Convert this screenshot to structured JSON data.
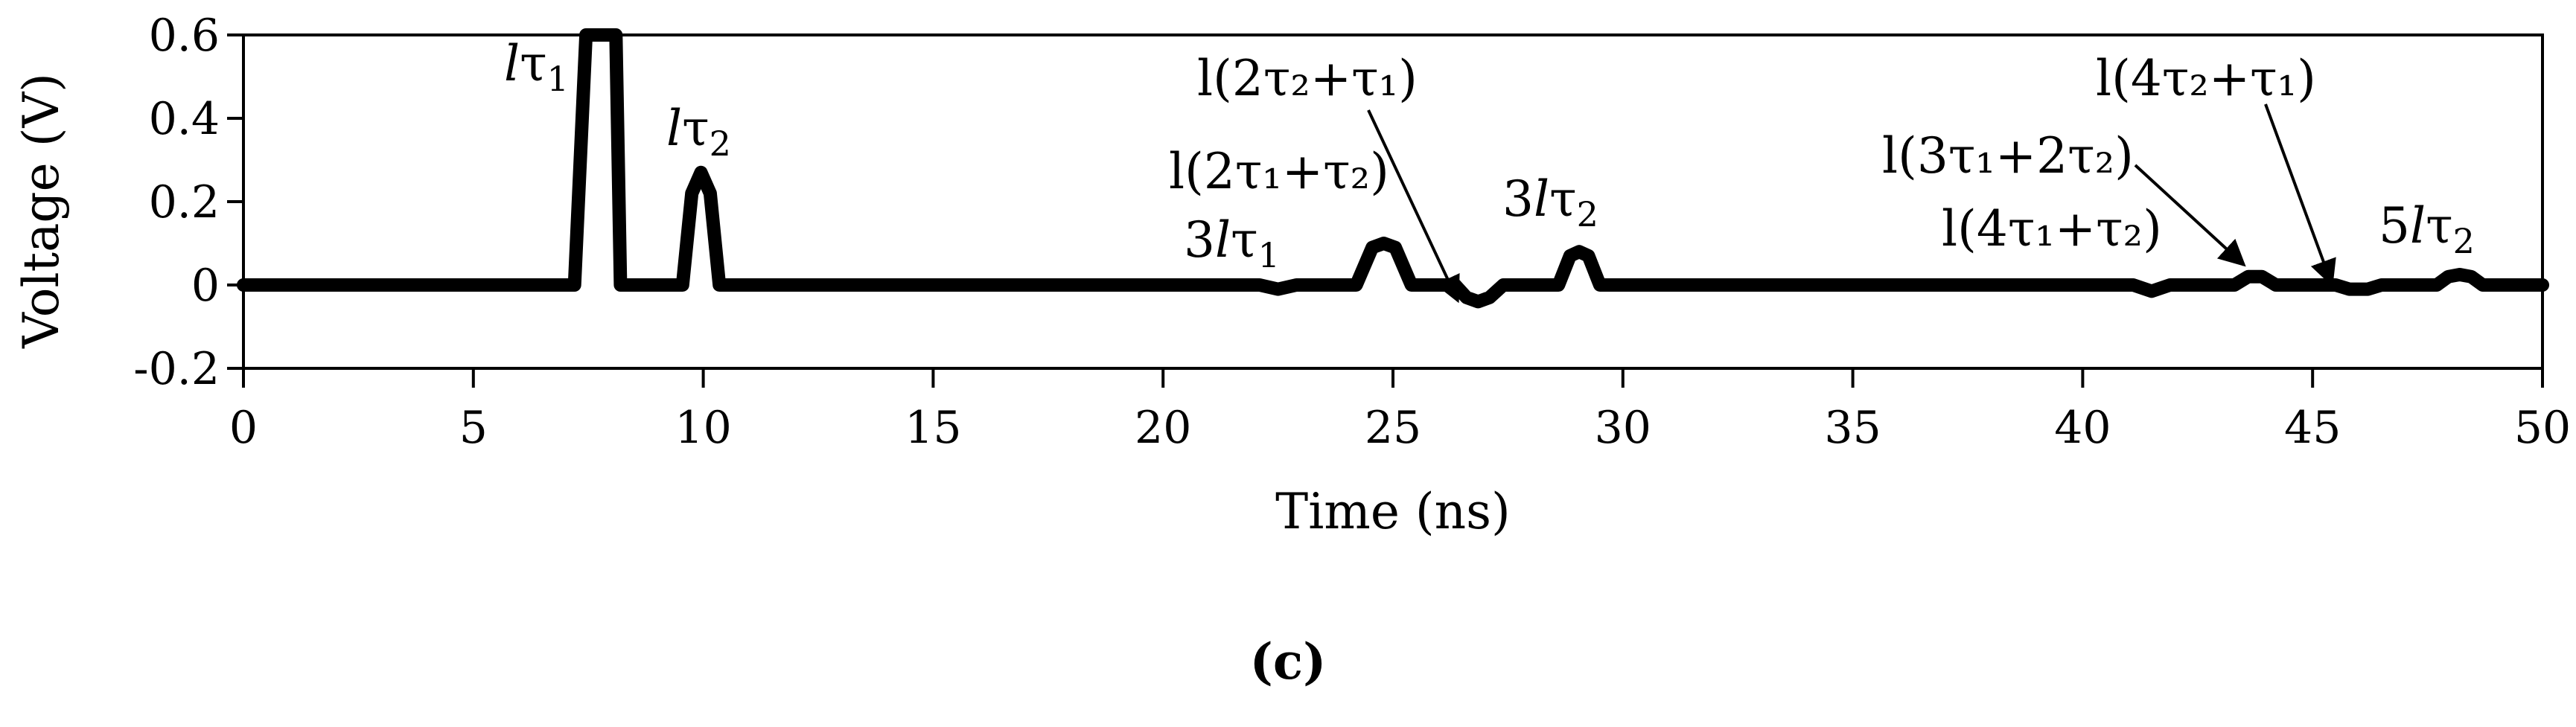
{
  "chart_data": {
    "type": "line",
    "title": "",
    "xlabel": "Time (ns)",
    "ylabel": "Voltage (V)",
    "xlim": [
      0,
      50
    ],
    "ylim": [
      -0.2,
      0.6
    ],
    "x_ticks": [
      0,
      5,
      10,
      15,
      20,
      25,
      30,
      35,
      40,
      45,
      50
    ],
    "y_ticks": [
      -0.2,
      0,
      0.2,
      0.4,
      0.6
    ],
    "x_tick_labels": [
      "0",
      "5",
      "10",
      "15",
      "20",
      "25",
      "30",
      "35",
      "40",
      "45",
      "50"
    ],
    "y_tick_labels": [
      "-0.2",
      "0",
      "0.2",
      "0.4",
      "0.6"
    ],
    "grid": false,
    "legend": "none",
    "series": [
      {
        "points": [
          [
            0,
            0
          ],
          [
            7.2,
            0
          ],
          [
            7.45,
            0.6
          ],
          [
            7.65,
            0.6
          ],
          [
            7.9,
            0.6
          ],
          [
            8.1,
            0.6
          ],
          [
            8.2,
            0
          ],
          [
            9.55,
            0
          ],
          [
            9.75,
            0.22
          ],
          [
            9.95,
            0.27
          ],
          [
            10.15,
            0.22
          ],
          [
            10.35,
            0
          ],
          [
            22.1,
            0
          ],
          [
            22.5,
            -0.01
          ],
          [
            22.9,
            0
          ],
          [
            24.2,
            0
          ],
          [
            24.55,
            0.09
          ],
          [
            24.8,
            0.1
          ],
          [
            25.05,
            0.09
          ],
          [
            25.4,
            0
          ],
          [
            26.35,
            0
          ],
          [
            26.6,
            -0.03
          ],
          [
            26.85,
            -0.04
          ],
          [
            27.1,
            -0.03
          ],
          [
            27.4,
            0
          ],
          [
            28.6,
            0
          ],
          [
            28.85,
            0.07
          ],
          [
            29.05,
            0.08
          ],
          [
            29.25,
            0.07
          ],
          [
            29.5,
            0
          ],
          [
            41.1,
            0
          ],
          [
            41.5,
            -0.015
          ],
          [
            41.9,
            0
          ],
          [
            43.3,
            0
          ],
          [
            43.6,
            0.02
          ],
          [
            43.9,
            0.02
          ],
          [
            44.2,
            0
          ],
          [
            45.5,
            0
          ],
          [
            45.8,
            -0.01
          ],
          [
            46.2,
            -0.01
          ],
          [
            46.5,
            0
          ],
          [
            47.7,
            0
          ],
          [
            47.95,
            0.02
          ],
          [
            48.2,
            0.025
          ],
          [
            48.45,
            0.02
          ],
          [
            48.7,
            0
          ],
          [
            50,
            0
          ]
        ]
      }
    ],
    "annotations": {
      "a1": {
        "pre": "",
        "ital": "l",
        "post": "τ",
        "sub": "1"
      },
      "a2": {
        "pre": "",
        "ital": "l",
        "post": "τ",
        "sub": "2"
      },
      "a3": {
        "text": "l(2τ₂+τ₁)"
      },
      "a4": {
        "text": "l(2τ₁+τ₂)"
      },
      "a5": {
        "pre": "3",
        "ital": "l",
        "post": "τ",
        "sub": "1"
      },
      "a6": {
        "pre": "3",
        "ital": "l",
        "post": "τ",
        "sub": "2"
      },
      "a7": {
        "text": "l(4τ₂+τ₁)"
      },
      "a8": {
        "text": "l(3τ₁+2τ₂)"
      },
      "a9": {
        "text": "l(4τ₁+τ₂)"
      },
      "a10": {
        "pre": "5",
        "ital": "l",
        "post": "τ",
        "sub": "2"
      }
    }
  },
  "caption": "(c)",
  "colors": {
    "line": "#000000",
    "axis": "#000000",
    "background": "#ffffff"
  }
}
